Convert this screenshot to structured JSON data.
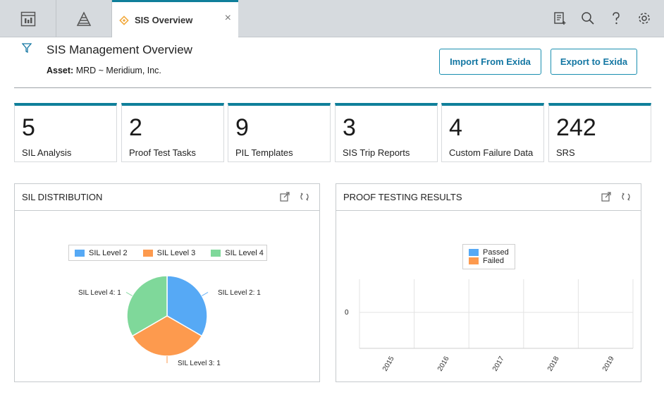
{
  "tab": {
    "title": "SIS Overview",
    "close": "×"
  },
  "header": {
    "title": "SIS Management Overview",
    "asset_label": "Asset:",
    "asset_value": "MRD ~ Meridium, Inc.",
    "import_button": "Import From Exida",
    "export_button": "Export to Exida"
  },
  "stats": [
    {
      "value": "5",
      "label": "SIL Analysis"
    },
    {
      "value": "2",
      "label": "Proof Test Tasks"
    },
    {
      "value": "9",
      "label": "PIL Templates"
    },
    {
      "value": "3",
      "label": "SIS Trip Reports"
    },
    {
      "value": "4",
      "label": "Custom Failure Data"
    },
    {
      "value": "242",
      "label": "SRS"
    }
  ],
  "panels": {
    "sil": {
      "title": "SIL DISTRIBUTION"
    },
    "proof": {
      "title": "PROOF TESTING RESULTS"
    }
  },
  "colors": {
    "accent": "#0f7f9a",
    "blue": "#56a9f5",
    "orange": "#fd9a4e",
    "green": "#7fd89a"
  },
  "chart_data": [
    {
      "type": "pie",
      "title": "SIL DISTRIBUTION",
      "legend": [
        "SIL Level 2",
        "SIL Level 3",
        "SIL Level 4"
      ],
      "slices": [
        {
          "name": "SIL Level 2",
          "value": 1,
          "label": "SIL Level 2: 1"
        },
        {
          "name": "SIL Level 3",
          "value": 1,
          "label": "SIL Level 3: 1"
        },
        {
          "name": "SIL Level 4",
          "value": 1,
          "label": "SIL Level 4: 1"
        }
      ]
    },
    {
      "type": "bar",
      "title": "PROOF TESTING RESULTS",
      "categories": [
        "2015",
        "2016",
        "2017",
        "2018",
        "2019"
      ],
      "series": [
        {
          "name": "Passed",
          "values": [
            0,
            0,
            0,
            0,
            0
          ]
        },
        {
          "name": "Failed",
          "values": [
            0,
            0,
            0,
            0,
            0
          ]
        }
      ],
      "y_ticks": [
        "0"
      ]
    }
  ]
}
